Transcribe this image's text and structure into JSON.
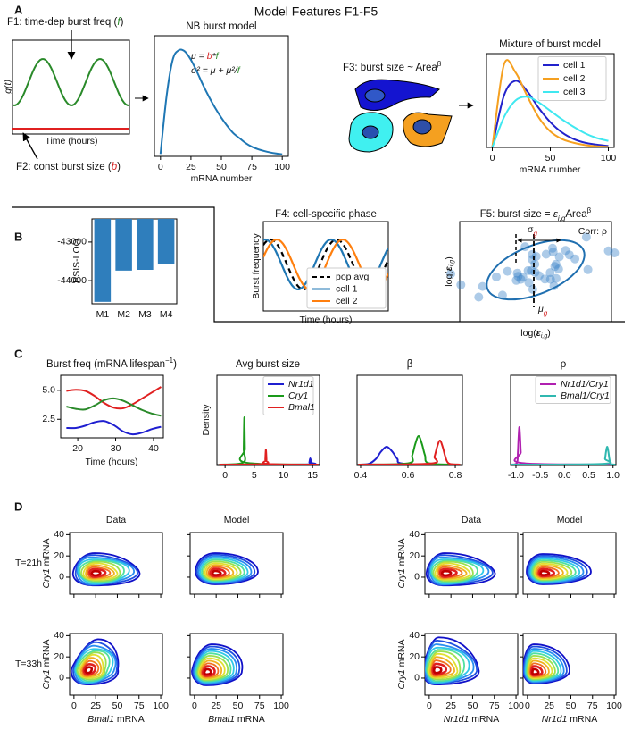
{
  "title": "Model Features F1-F5",
  "panel_labels": [
    "A",
    "B",
    "C",
    "D"
  ],
  "panel_a": {
    "f1_label": [
      "F1: time-dep burst freq (",
      "f",
      ")"
    ],
    "f1_ylabel": "g(t)",
    "f1_xlabel": "Time (hours)",
    "f2_label": [
      "F2: const burst size (",
      "b",
      ")"
    ],
    "nb_model": {
      "type": "line",
      "title": "NB burst model",
      "equation_mu": [
        "μ = ",
        "b",
        "*",
        "f"
      ],
      "equation_sigma": [
        "σ² = μ + μ²/",
        "f"
      ],
      "xlabel": "mRNA number",
      "xlim": [
        -5,
        105
      ],
      "xticks": [
        0,
        25,
        50,
        75,
        100
      ],
      "ylim": [
        0,
        1
      ],
      "x": [
        0,
        5,
        10,
        15,
        20,
        25,
        30,
        35,
        40,
        45,
        50,
        55,
        60,
        65,
        70,
        75,
        80,
        85,
        90,
        95,
        100
      ],
      "series": [
        {
          "color": "#1f77b4",
          "values": [
            0.02,
            0.5,
            0.8,
            0.88,
            0.87,
            0.8,
            0.7,
            0.59,
            0.49,
            0.4,
            0.32,
            0.25,
            0.19,
            0.15,
            0.11,
            0.08,
            0.06,
            0.045,
            0.033,
            0.024,
            0.017
          ]
        }
      ]
    },
    "f3_label": [
      "F3: burst size ~ Area",
      "β"
    ],
    "mixture": {
      "type": "line",
      "title": "Mixture of burst model",
      "xlabel": "mRNA number",
      "xlim": [
        -5,
        105
      ],
      "xticks": [
        0,
        50,
        100
      ],
      "ylim": [
        0,
        1
      ],
      "x": [
        0,
        10,
        20,
        30,
        40,
        50,
        60,
        70,
        80,
        90,
        100
      ],
      "series": [
        {
          "name": "cell 1",
          "color": "#2222cc",
          "values": [
            0,
            0.55,
            0.71,
            0.6,
            0.42,
            0.27,
            0.16,
            0.09,
            0.05,
            0.03,
            0.015
          ]
        },
        {
          "name": "cell 2",
          "color": "#f5a020",
          "values": [
            0,
            0.88,
            0.8,
            0.55,
            0.32,
            0.17,
            0.09,
            0.05,
            0.025,
            0.012,
            0.006
          ]
        },
        {
          "name": "cell 3",
          "color": "#40e8f0",
          "values": [
            0,
            0.32,
            0.5,
            0.54,
            0.48,
            0.39,
            0.3,
            0.22,
            0.15,
            0.1,
            0.07
          ]
        }
      ]
    }
  },
  "panel_b": {
    "type": "bar",
    "ylabel": "PSIS-LOO",
    "categories": [
      "M1",
      "M2",
      "M3",
      "M4"
    ],
    "values": [
      -44550,
      -43740,
      -43720,
      -43580
    ],
    "color": "#2f7ebc",
    "ylim": [
      -44600,
      -42400
    ],
    "yticks": [
      -44000,
      -43000
    ]
  },
  "f4": {
    "title": "F4: cell-specific phase",
    "ylabel": "Burst frequency",
    "xlabel": "Time (hours)",
    "legend": [
      {
        "name": "pop avg",
        "color": "#000000"
      },
      {
        "name": "cell 1",
        "color": "#1f77b4"
      },
      {
        "name": "cell 2",
        "color": "#ff7f0e"
      }
    ]
  },
  "f5": {
    "title": [
      "F5: burst size = ",
      "ε",
      "i,g",
      "Area",
      "β"
    ],
    "corr": "Corr: ρ",
    "sigma": [
      "σ",
      "g"
    ],
    "mu": [
      "μ",
      "g"
    ],
    "ylabel": [
      "log(",
      "ε",
      "i,g",
      ")"
    ],
    "xlabel": [
      "log(",
      "ε",
      "i,g",
      ")"
    ]
  },
  "panel_c": [
    {
      "type": "line",
      "title": [
        "Burst freq (mRNA lifespan",
        "−1",
        ")"
      ],
      "xlabel": "Time (hours)",
      "xlim": [
        15.5,
        42.6
      ],
      "ylim": [
        0.9,
        6.3
      ],
      "xticks": [
        20,
        30,
        40
      ],
      "yticks": [
        2.5,
        {
          "value": 5,
          "label": "5.0"
        }
      ],
      "x": [
        17,
        19.5,
        22,
        24.5,
        27,
        29.5,
        32,
        34.5,
        37,
        39.5,
        42
      ],
      "series": [
        {
          "color": "#e02020",
          "values": [
            4.95,
            5.05,
            4.95,
            4.5,
            3.9,
            3.5,
            3.45,
            3.8,
            4.3,
            4.8,
            5.3
          ]
        },
        {
          "color": "#2a8a2a",
          "values": [
            3.6,
            3.4,
            3.35,
            3.7,
            4.15,
            4.3,
            4.1,
            3.7,
            3.3,
            3.0,
            2.8
          ]
        },
        {
          "color": "#1f1fd0",
          "values": [
            1.75,
            1.75,
            1.95,
            2.25,
            2.35,
            2.0,
            1.45,
            1.2,
            1.35,
            1.65,
            1.85
          ]
        }
      ]
    },
    {
      "type": "line",
      "title": "Avg burst size",
      "ylabel": "Density",
      "xlim": [
        -1.4,
        16.2
      ],
      "ylim": [
        0,
        1
      ],
      "xticks": [
        0,
        5,
        10,
        15
      ],
      "series": [
        {
          "name": "Nr1d1",
          "color": "#1f1fd0",
          "x": [
            -1,
            14.35,
            14.45,
            14.52,
            14.6,
            14.68,
            14.75,
            14.85,
            16
          ],
          "values": [
            0,
            0.003,
            0.023,
            0.051,
            0.07,
            0.051,
            0.023,
            0.003,
            0
          ]
        },
        {
          "name": "Cry1",
          "color": "#1a9a1a",
          "x": [
            -1,
            3.125,
            3.195,
            3.244,
            3.3,
            3.356,
            3.405,
            3.475,
            16
          ],
          "values": [
            0,
            0.023,
            0.172,
            0.385,
            0.53,
            0.385,
            0.172,
            0.023,
            0
          ]
        },
        {
          "name": "Bmal1",
          "color": "#e02020",
          "x": [
            -1,
            6.825,
            6.895,
            6.944,
            7.0,
            7.056,
            7.105,
            7.175,
            16
          ],
          "values": [
            0,
            0.007,
            0.055,
            0.123,
            0.17,
            0.123,
            0.055,
            0.007,
            0
          ]
        }
      ]
    },
    {
      "type": "line",
      "title": "β",
      "xlim": [
        0.385,
        0.83
      ],
      "ylim": [
        0,
        1
      ],
      "xticks": [
        0.4,
        0.6,
        0.8
      ],
      "series": [
        {
          "color": "#1f1fd0",
          "x": [
            0.39,
            0.435,
            0.465,
            0.486,
            0.51,
            0.534,
            0.555,
            0.585,
            0.82
          ],
          "values": [
            0,
            0.009,
            0.065,
            0.145,
            0.2,
            0.145,
            0.065,
            0.009,
            0
          ]
        },
        {
          "color": "#1a9a1a",
          "x": [
            0.39,
            0.6,
            0.618,
            0.631,
            0.645,
            0.659,
            0.672,
            0.69,
            0.82
          ],
          "values": [
            0,
            0.014,
            0.104,
            0.232,
            0.32,
            0.232,
            0.104,
            0.014,
            0
          ]
        },
        {
          "color": "#e02020",
          "x": [
            0.39,
            0.697,
            0.712,
            0.723,
            0.735,
            0.747,
            0.758,
            0.773,
            0.82
          ],
          "values": [
            0,
            0.012,
            0.088,
            0.196,
            0.27,
            0.196,
            0.088,
            0.012,
            0
          ]
        }
      ]
    },
    {
      "type": "line",
      "title": "ρ",
      "xlim": [
        -1.11,
        1.06
      ],
      "ylim": [
        0,
        1
      ],
      "xticks": [
        {
          "value": -1,
          "label": "-1.0"
        },
        -0.5,
        {
          "value": 0,
          "label": "0.0"
        },
        0.5,
        {
          "value": 1,
          "label": "1.0"
        }
      ],
      "series": [
        {
          "name": "Nr1d1/Cry1",
          "color": "#b020b0",
          "x": [
            -1.1,
            -0.98,
            -0.96,
            -0.946,
            -0.93,
            -0.914,
            -0.9,
            -0.88,
            1.05
          ],
          "values": [
            0,
            0.018,
            0.137,
            0.305,
            0.42,
            0.305,
            0.137,
            0.018,
            0
          ]
        },
        {
          "name": "Bmal1/Cry1",
          "color": "#30b8b0",
          "x": [
            -1.1,
            0.805,
            0.835,
            0.856,
            0.88,
            0.904,
            0.925,
            0.955,
            1.05
          ],
          "values": [
            0,
            0.009,
            0.065,
            0.145,
            0.2,
            0.145,
            0.065,
            0.009,
            0
          ]
        }
      ]
    }
  ],
  "panel_d": {
    "columns": [
      "Data",
      "Model",
      "Data",
      "Model"
    ],
    "rows": [
      "T=21h",
      "T=33h"
    ],
    "ylabel": [
      "Cry1",
      " mRNA"
    ],
    "xlabels": [
      [
        "Bmal1",
        " mRNA"
      ],
      [
        "Nr1d1",
        " mRNA"
      ]
    ],
    "xlim": [
      -5,
      102
    ],
    "ylim": [
      -16,
      42
    ],
    "xticks": [
      0,
      25,
      50,
      75,
      100
    ],
    "yticks": [
      0,
      20,
      40
    ]
  }
}
